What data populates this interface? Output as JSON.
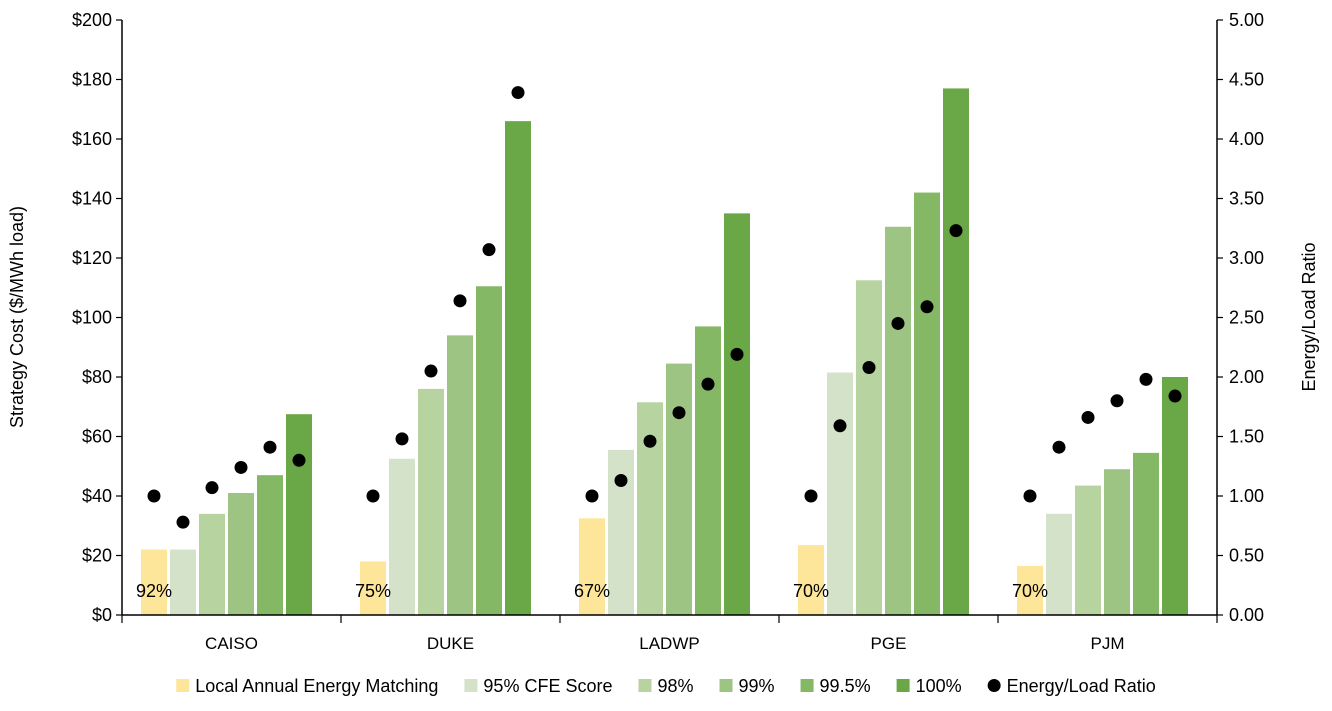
{
  "chart_data": {
    "type": "bar",
    "categories": [
      "CAISO",
      "DUKE",
      "LADWP",
      "PGE",
      "PJM"
    ],
    "series": [
      {
        "name": "Local Annual Energy Matching",
        "color": "#fde59a",
        "values": [
          22,
          18,
          32.5,
          23.5,
          16.5
        ]
      },
      {
        "name": "95% CFE Score",
        "color": "#d3e2c8",
        "values": [
          22,
          52.5,
          55.5,
          81.5,
          34
        ]
      },
      {
        "name": "98%",
        "color": "#b6d3a0",
        "values": [
          34,
          76,
          71.5,
          112.5,
          43.5
        ]
      },
      {
        "name": "99%",
        "color": "#9dc483",
        "values": [
          41,
          94,
          84.5,
          130.5,
          49
        ]
      },
      {
        "name": "99.5%",
        "color": "#84b864",
        "values": [
          47,
          110.5,
          97,
          142,
          54.5
        ]
      },
      {
        "name": "100%",
        "color": "#6aa746",
        "values": [
          67.5,
          166,
          135,
          177,
          80
        ]
      }
    ],
    "ratio_series": {
      "name": "Energy/Load Ratio",
      "color": "#000000",
      "values": [
        [
          1.0,
          0.78,
          1.07,
          1.24,
          1.41,
          1.3
        ],
        [
          1.0,
          1.48,
          2.05,
          2.64,
          3.07,
          4.39
        ],
        [
          1.0,
          1.13,
          1.46,
          1.7,
          1.94,
          2.19
        ],
        [
          1.0,
          1.59,
          2.08,
          2.45,
          2.59,
          3.23
        ],
        [
          1.0,
          1.41,
          1.66,
          1.8,
          1.98,
          1.84
        ]
      ]
    },
    "annotations": [
      "92%",
      "75%",
      "67%",
      "70%",
      "70%"
    ],
    "ylabel": "Strategy Cost ($/MWh load)",
    "y2label": "Energy/Load Ratio",
    "ylim": [
      0,
      200
    ],
    "y2lim": [
      0,
      5
    ],
    "y_ticks": [
      "$0",
      "$20",
      "$40",
      "$60",
      "$80",
      "$100",
      "$120",
      "$140",
      "$160",
      "$180",
      "$200"
    ],
    "y2_ticks": [
      "0.00",
      "0.50",
      "1.00",
      "1.50",
      "2.00",
      "2.50",
      "3.00",
      "3.50",
      "4.00",
      "4.50",
      "5.00"
    ],
    "grid": false,
    "legend_position": "bottom"
  }
}
